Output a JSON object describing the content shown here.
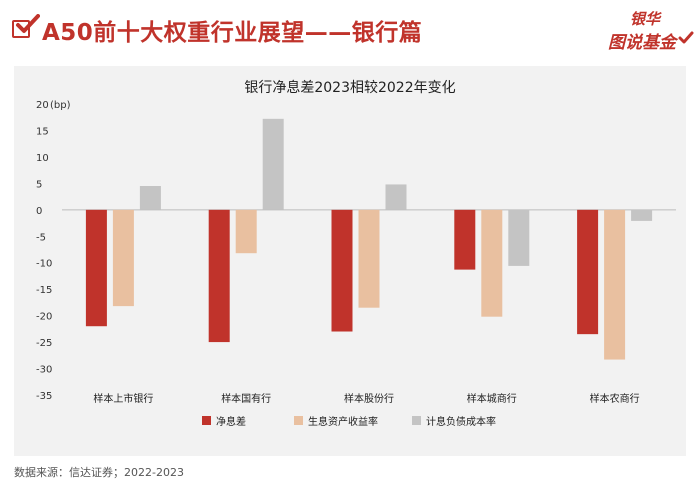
{
  "header": {
    "title": "A50前十大权重行业展望——银行篇",
    "logo_top": "银华",
    "logo_bottom": "图说基金"
  },
  "source": "数据来源：信达证券；2022-2023",
  "colors": {
    "brand_red": "#c0332b",
    "series": [
      "#c0332b",
      "#e9c0a0",
      "#c4c4c4"
    ]
  },
  "chart_data": {
    "type": "bar",
    "title": "银行净息差2023相较2022年变化",
    "unit_label": "(bp)",
    "categories": [
      "样本上市银行",
      "样本国有行",
      "样本股份行",
      "样本城商行",
      "样本农商行"
    ],
    "series": [
      {
        "name": "净息差",
        "values": [
          -22,
          -25,
          -23,
          -11.3,
          -23.5
        ]
      },
      {
        "name": "生息资产收益率",
        "values": [
          -18.2,
          -8.2,
          -18.5,
          -20.2,
          -28.3
        ]
      },
      {
        "name": "计息负债成本率",
        "values": [
          4.5,
          17.2,
          4.8,
          -10.6,
          -2.1
        ]
      }
    ],
    "ylim": [
      -35,
      20
    ],
    "yticks": [
      20,
      15,
      10,
      5,
      0,
      -5,
      -10,
      -15,
      -20,
      -25,
      -30,
      -35
    ],
    "legend_position": "bottom"
  }
}
